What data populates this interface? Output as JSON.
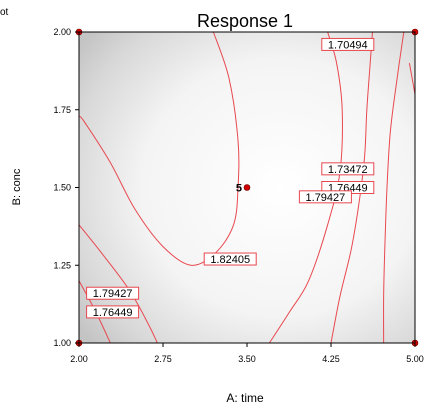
{
  "corner_text": "ot",
  "chart_data": {
    "type": "contour",
    "title": "Response 1",
    "xlabel": "A: time",
    "ylabel": "B: conc",
    "xlim": [
      2.0,
      5.0
    ],
    "ylim": [
      1.0,
      2.0
    ],
    "x_ticks": [
      "2.00",
      "2.75",
      "3.50",
      "4.25",
      "5.00"
    ],
    "y_ticks": [
      "1.00",
      "1.25",
      "1.50",
      "1.75",
      "2.00"
    ],
    "contour_color": "#e8484f",
    "design_points": [
      {
        "x": 2.0,
        "y": 2.0
      },
      {
        "x": 5.0,
        "y": 2.0
      },
      {
        "x": 3.5,
        "y": 1.5,
        "label": "5"
      },
      {
        "x": 2.0,
        "y": 1.0
      },
      {
        "x": 5.0,
        "y": 1.0
      }
    ],
    "contours": [
      {
        "level": 1.82405,
        "points": [
          [
            3.2,
            2.0
          ],
          [
            3.34,
            1.85
          ],
          [
            3.42,
            1.65
          ],
          [
            3.42,
            1.5
          ],
          [
            3.38,
            1.38
          ],
          [
            3.22,
            1.29
          ],
          [
            3.0,
            1.25
          ],
          [
            2.75,
            1.31
          ],
          [
            2.5,
            1.43
          ],
          [
            2.28,
            1.58
          ],
          [
            2.05,
            1.71
          ],
          [
            2.0,
            1.73
          ]
        ]
      },
      {
        "level": 1.79427,
        "points": [
          [
            4.22,
            2.0
          ],
          [
            4.3,
            1.9
          ],
          [
            4.35,
            1.75
          ],
          [
            4.33,
            1.55
          ],
          [
            4.22,
            1.38
          ],
          [
            4.05,
            1.2
          ],
          [
            3.88,
            1.1
          ],
          [
            3.7,
            1.0
          ]
        ]
      },
      {
        "level": 1.79427,
        "points": [
          [
            2.0,
            1.38
          ],
          [
            2.2,
            1.29
          ],
          [
            2.45,
            1.17
          ],
          [
            2.62,
            1.06
          ],
          [
            2.7,
            1.0
          ]
        ]
      },
      {
        "level": 1.76449,
        "points": [
          [
            4.62,
            2.0
          ],
          [
            4.6,
            1.9
          ],
          [
            4.57,
            1.75
          ],
          [
            4.55,
            1.6
          ],
          [
            4.5,
            1.45
          ],
          [
            4.43,
            1.3
          ],
          [
            4.33,
            1.15
          ],
          [
            4.25,
            1.0
          ]
        ]
      },
      {
        "level": 1.76449,
        "points": [
          [
            2.0,
            1.2
          ],
          [
            2.15,
            1.1
          ],
          [
            2.28,
            1.0
          ]
        ]
      },
      {
        "level": 1.73472,
        "points": [
          [
            4.9,
            2.0
          ],
          [
            4.84,
            1.85
          ],
          [
            4.78,
            1.68
          ],
          [
            4.75,
            1.5
          ],
          [
            4.73,
            1.3
          ],
          [
            4.72,
            1.15
          ],
          [
            4.72,
            1.0
          ]
        ]
      },
      {
        "level": 1.70494,
        "points": [
          [
            4.95,
            1.9
          ],
          [
            5.0,
            1.8
          ]
        ]
      }
    ],
    "contour_labels": [
      {
        "text": "1.70494",
        "x": 4.4,
        "y": 1.96
      },
      {
        "text": "1.73472",
        "x": 4.4,
        "y": 1.56
      },
      {
        "text": "1.76449",
        "x": 4.4,
        "y": 1.5
      },
      {
        "text": "1.79427",
        "x": 4.2,
        "y": 1.47
      },
      {
        "text": "1.82405",
        "x": 3.35,
        "y": 1.27
      },
      {
        "text": "1.79427",
        "x": 2.3,
        "y": 1.16
      },
      {
        "text": "1.76449",
        "x": 2.3,
        "y": 1.1
      }
    ]
  }
}
